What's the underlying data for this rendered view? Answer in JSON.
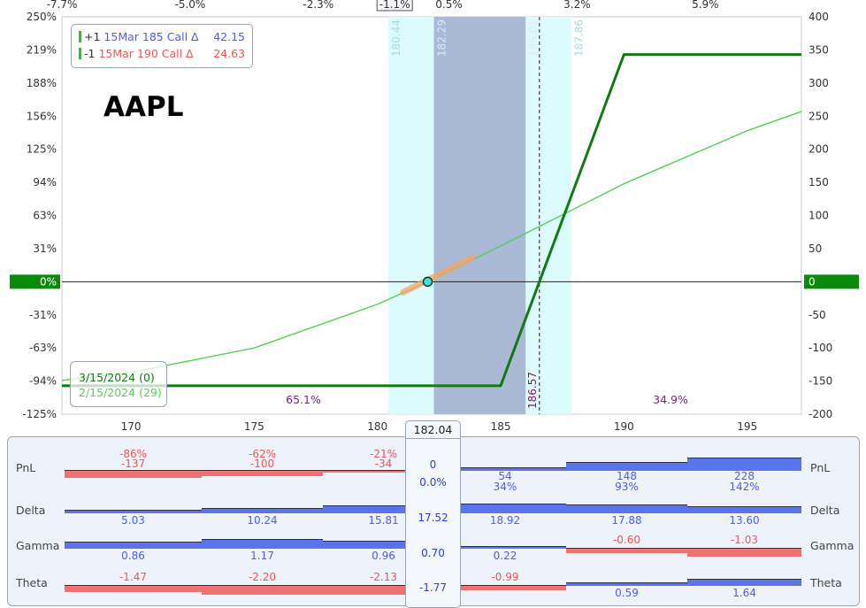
{
  "ticker": "AAPL",
  "legend": {
    "rows": [
      {
        "qty": "+1",
        "desc": "15Mar 185 Call Δ",
        "value": "42.15",
        "color": "blue"
      },
      {
        "qty": "-1",
        "desc": "15Mar 190 Call Δ",
        "value": "24.63",
        "color": "red"
      }
    ]
  },
  "dates": {
    "expiry": "3/15/2024 (0)",
    "today": "2/15/2024 (29)"
  },
  "chart_data": {
    "type": "line",
    "x_range": [
      167.2,
      197.2
    ],
    "left_axis": {
      "ticks": [
        "250%",
        "219%",
        "188%",
        "156%",
        "125%",
        "94%",
        "63%",
        "31%",
        "0%",
        "-31%",
        "-63%",
        "-94%",
        "-125%"
      ]
    },
    "right_axis": {
      "ticks": [
        400,
        350,
        300,
        250,
        200,
        150,
        100,
        50,
        0,
        -50,
        -100,
        -150,
        -200
      ],
      "range": [
        -200,
        400
      ]
    },
    "x_ticks": [
      170,
      175,
      180,
      185,
      190,
      195
    ],
    "top_ticks": [
      {
        "label": "-7.7%",
        "x": 167.2
      },
      {
        "label": "-5.0%",
        "x": 172.4
      },
      {
        "label": "-2.3%",
        "x": 177.6
      },
      {
        "label": "-1.1%",
        "x": 180.7,
        "boxed": true
      },
      {
        "label": "0.5%",
        "x": 182.9
      },
      {
        "label": "3.2%",
        "x": 188.1
      },
      {
        "label": "5.9%",
        "x": 193.3
      }
    ],
    "current_price": "182.04",
    "breakeven": "186.57",
    "sd_band_outer": [
      "180.44",
      "187.86"
    ],
    "sd_band_inner": [
      "182.29",
      "186.01"
    ],
    "prob_left": "65.1%",
    "prob_right": "34.9%",
    "series": [
      {
        "points": [
          [
            167.2,
            -157
          ],
          [
            185,
            -157
          ],
          [
            190,
            343
          ],
          [
            197.2,
            343
          ]
        ]
      },
      {
        "points": [
          [
            167.2,
            -149
          ],
          [
            170,
            -137
          ],
          [
            175,
            -100
          ],
          [
            180,
            -34
          ],
          [
            182.04,
            0
          ],
          [
            185,
            54
          ],
          [
            190,
            148
          ],
          [
            195,
            228
          ],
          [
            197.2,
            257
          ]
        ]
      }
    ]
  },
  "greeks": {
    "rows": [
      {
        "label": "PnL",
        "current": [
          "0",
          "0.0%"
        ],
        "cells": [
          [
            "-86%",
            "-137"
          ],
          [
            "-62%",
            "-100"
          ],
          [
            "-21%",
            "-34"
          ],
          [
            "54",
            "34%"
          ],
          [
            "148",
            "93%"
          ],
          [
            "228",
            "142%"
          ]
        ],
        "values": [
          -137,
          -100,
          -34,
          54,
          148,
          228
        ]
      },
      {
        "label": "Delta",
        "current": [
          "17.52"
        ],
        "cells": [
          [
            "5.03"
          ],
          [
            "10.24"
          ],
          [
            "15.81"
          ],
          [
            "18.92"
          ],
          [
            "17.88"
          ],
          [
            "13.60"
          ]
        ],
        "values": [
          5.03,
          10.24,
          15.81,
          18.92,
          17.88,
          13.6
        ]
      },
      {
        "label": "Gamma",
        "current": [
          "0.70"
        ],
        "cells": [
          [
            "0.86"
          ],
          [
            "1.17"
          ],
          [
            "0.96"
          ],
          [
            "0.22"
          ],
          [
            "-0.60"
          ],
          [
            "-1.03"
          ]
        ],
        "values": [
          0.86,
          1.17,
          0.96,
          0.22,
          -0.6,
          -1.03
        ]
      },
      {
        "label": "Theta",
        "current": [
          "-1.77"
        ],
        "cells": [
          [
            "-1.47"
          ],
          [
            "-2.20"
          ],
          [
            "-2.13"
          ],
          [
            "-0.99"
          ],
          [
            "0.59"
          ],
          [
            "1.64"
          ]
        ],
        "values": [
          -1.47,
          -2.2,
          -2.13,
          -0.99,
          0.59,
          1.64
        ]
      }
    ]
  },
  "colors": {
    "expiry_line": "#127a12",
    "today_line": "#4fd34f",
    "band_outer": "#dcfbfd",
    "band_inner": "#a9b9d6",
    "zero_marker": "#0a8a0a",
    "pos_bar": "#5a74ee",
    "neg_bar": "#ee7272"
  }
}
